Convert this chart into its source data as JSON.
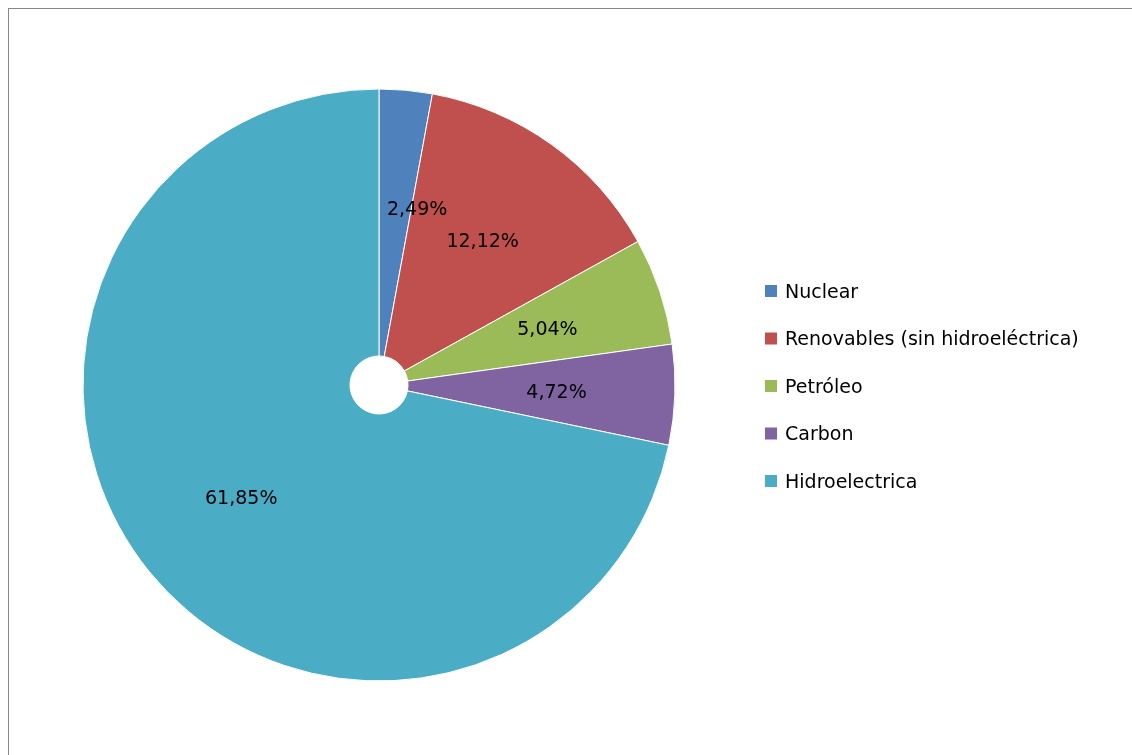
{
  "chart_data": {
    "type": "pie",
    "categories": [
      "Nuclear",
      "Renovables (sin hidroeléctrica)",
      "Petróleo",
      "Carbon",
      "Hidroelectrica"
    ],
    "values": [
      2.49,
      12.12,
      5.04,
      4.72,
      61.85
    ],
    "value_labels": [
      "2,49%",
      "12,12%",
      "5,04%",
      "4,72%",
      "61,85%"
    ],
    "colors": [
      "#4f81bd",
      "#c0504d",
      "#9bbb59",
      "#8064a2",
      "#4bacc6"
    ],
    "legend": "right"
  }
}
